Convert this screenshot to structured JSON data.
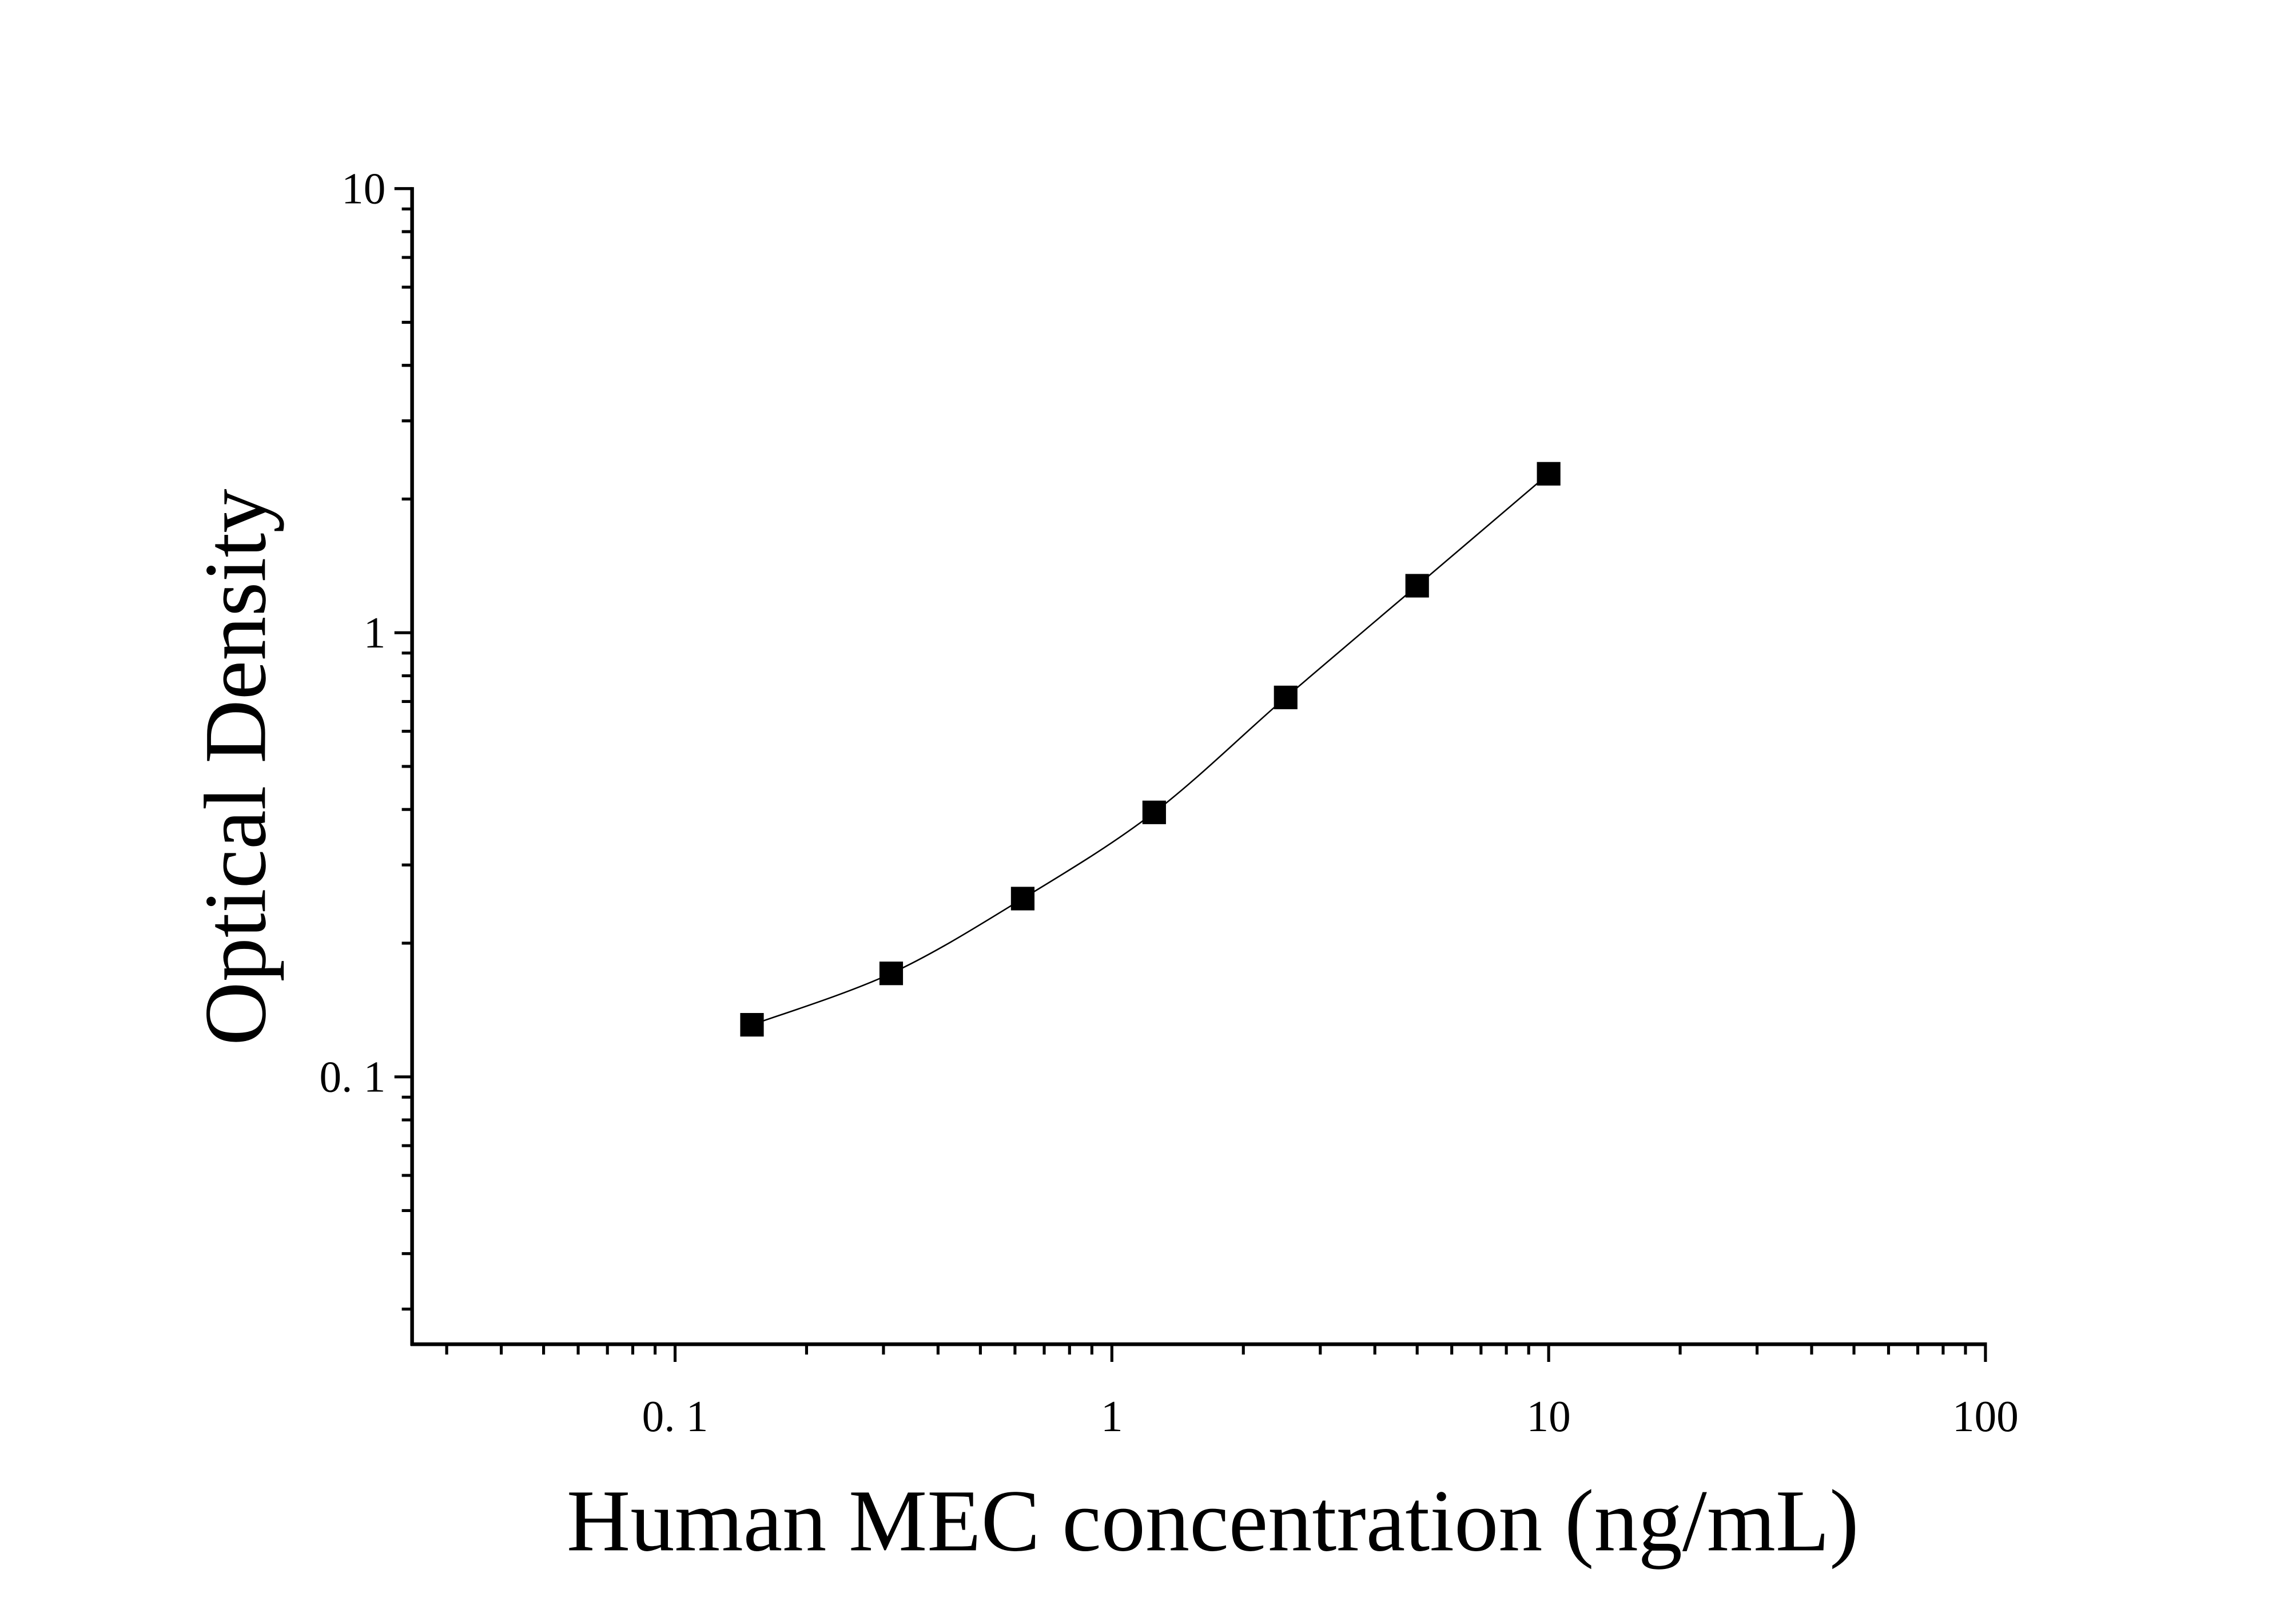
{
  "chart_data": {
    "type": "scatter",
    "title": "",
    "xlabel": "Human MEC concentration (ng/mL)",
    "ylabel": "Optical Density",
    "x_scale": "log",
    "y_scale": "log",
    "xlim": [
      0.025,
      100
    ],
    "ylim": [
      0.025,
      10
    ],
    "x_ticks": [
      {
        "value": 0.1,
        "label": "0. 1"
      },
      {
        "value": 1,
        "label": "1"
      },
      {
        "value": 10,
        "label": "10"
      },
      {
        "value": 100,
        "label": "100"
      }
    ],
    "y_ticks": [
      {
        "value": 0.1,
        "label": "0. 1"
      },
      {
        "value": 1,
        "label": "1"
      },
      {
        "value": 10,
        "label": "10"
      }
    ],
    "grid": false,
    "legend": "none",
    "marker": "square",
    "fit_curve": true,
    "color": "#000000",
    "series": [
      {
        "x": [
          0.15,
          0.3125,
          0.625,
          1.25,
          2.5,
          5,
          10
        ],
        "y": [
          0.131,
          0.171,
          0.252,
          0.394,
          0.715,
          1.276,
          2.28
        ]
      }
    ]
  }
}
